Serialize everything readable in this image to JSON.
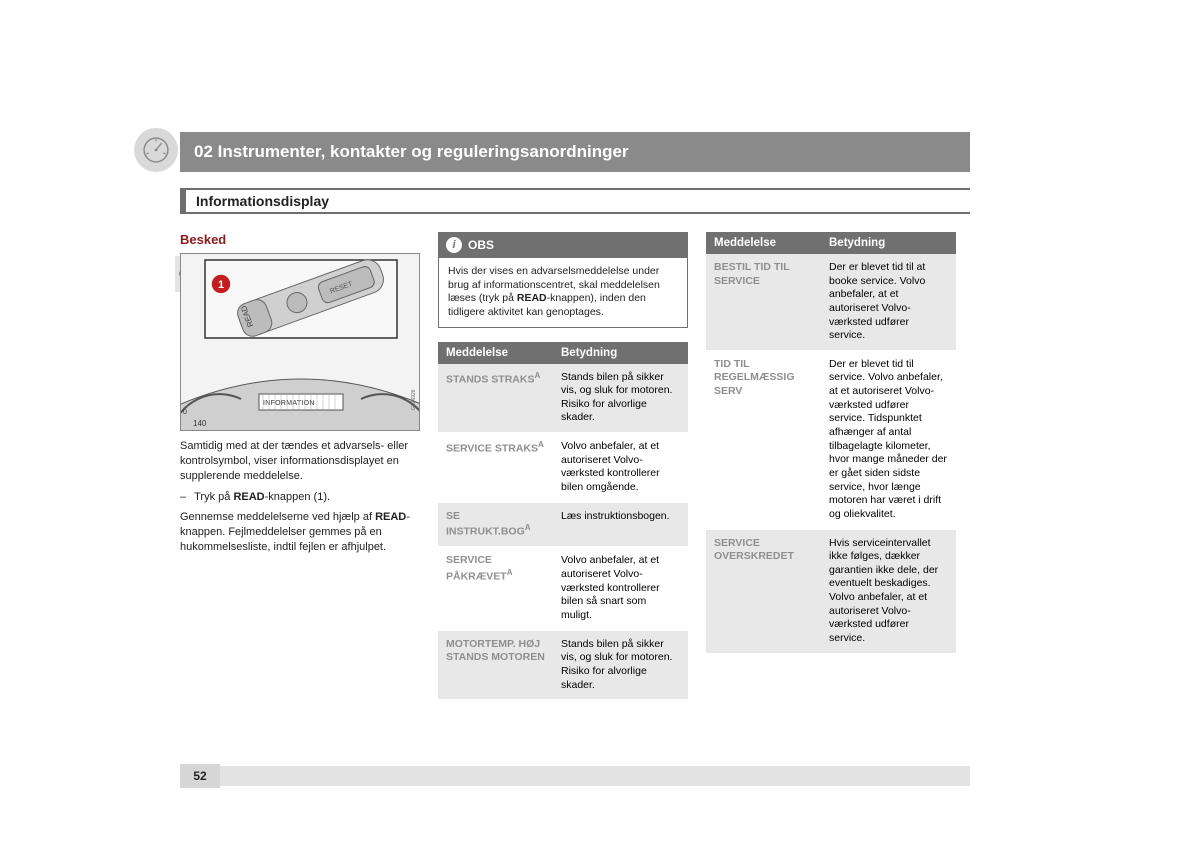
{
  "chapter_title": "02 Instrumenter, kontakter og reguleringsanordninger",
  "sub_heading": "Informationsdisplay",
  "side_tab": "02",
  "page_number": "52",
  "left": {
    "section_title": "Besked",
    "illustration": {
      "callout_number": "1",
      "display_text": "INFORMATION",
      "button1": "READ",
      "button2": "RESET",
      "code": "G026926"
    },
    "para1_pre": "Samtidig med at der tændes et advarsels- eller kontrolsymbol, viser informationsdisplayet en supplerende meddelelse.",
    "bullet_dash": "–",
    "bullet_pre": "Tryk på ",
    "bullet_bold": "READ",
    "bullet_post": "-knappen (1).",
    "para2_pre": "Gennemse meddelelserne ved hjælp af ",
    "para2_bold": "READ",
    "para2_post": "-knappen. Fejlmeddelelser gemmes på en hukommelsesliste, indtil fejlen er afhjulpet."
  },
  "obs": {
    "label": "OBS",
    "text_pre": "Hvis der vises en advarselsmeddelelse under brug af informationscentret, skal meddelelsen læses (tryk på ",
    "text_bold": "READ",
    "text_post": "-knappen), inden den tidligere aktivitet kan genoptages."
  },
  "th_message": "Meddelelse",
  "th_meaning": "Betydning",
  "table1": [
    {
      "msg": "STANDS STRAKS",
      "sup": "A",
      "meaning": "Stands bilen på sikker vis, og sluk for motoren. Risiko for alvorlige skader."
    },
    {
      "msg": "SERVICE STRAKS",
      "sup": "A",
      "meaning": "Volvo anbefaler, at et autoriseret Volvo-værksted kontrollerer bilen omgående."
    },
    {
      "msg": "SE INSTRUKT.BOG",
      "sup": "A",
      "meaning": "Læs instruktionsbogen."
    },
    {
      "msg": "SERVICE PÅKRÆVET",
      "sup": "A",
      "meaning": "Volvo anbefaler, at et autoriseret Volvo-værksted kontrollerer bilen så snart som muligt."
    },
    {
      "msg": "MOTORTEMP. HØJ STANDS MOTOREN",
      "sup": "",
      "meaning": "Stands bilen på sikker vis, og sluk for motoren. Risiko for alvorlige skader."
    }
  ],
  "table2": [
    {
      "msg": "BESTIL TID TIL SERVICE",
      "meaning": "Der er blevet tid til at booke service. Volvo anbefaler, at et autoriseret Volvo-værksted udfører service."
    },
    {
      "msg": "TID TIL REGELMÆSSIG SERV",
      "meaning": "Der er blevet tid til service. Volvo anbefaler, at et autoriseret Volvo-værksted udfører service. Tidspunktet afhænger af antal tilbagelagte kilometer, hvor mange måneder der er gået siden sidste service, hvor længe motoren har været i drift og oliekvalitet."
    },
    {
      "msg": "SERVICE OVERSKREDET",
      "meaning": "Hvis serviceintervallet ikke følges, dækker garantien ikke dele, der eventuelt beskadiges. Volvo anbefaler, at et autoriseret Volvo-værksted udfører service."
    }
  ]
}
